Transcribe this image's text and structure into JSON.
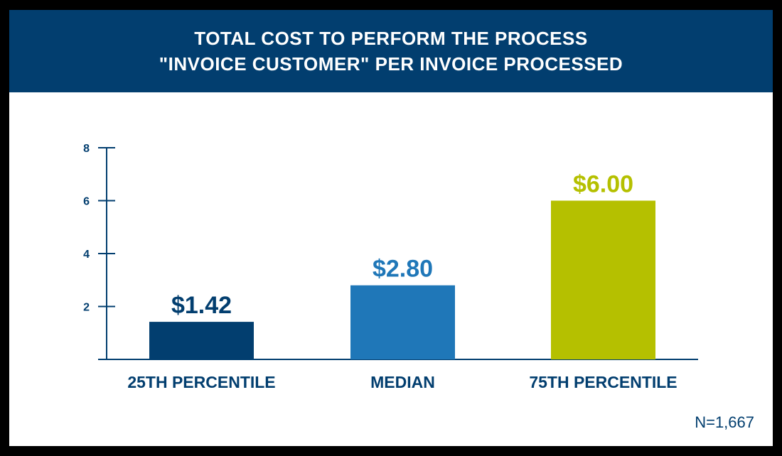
{
  "chart_data": {
    "type": "bar",
    "title_lines": [
      "TOTAL COST TO PERFORM THE PROCESS",
      "\"INVOICE CUSTOMER\" PER INVOICE PROCESSED"
    ],
    "categories": [
      "25TH PERCENTILE",
      "MEDIAN",
      "75TH PERCENTILE"
    ],
    "values": [
      1.42,
      2.8,
      6.0
    ],
    "data_labels": [
      "$1.42",
      "$2.80",
      "$6.00"
    ],
    "colors": [
      "#023e6f",
      "#1f77b8",
      "#b5c000"
    ],
    "yticks": [
      2,
      4,
      6,
      8
    ],
    "ylim": [
      0,
      8
    ],
    "grid": false,
    "footnote": "N=1,667"
  }
}
